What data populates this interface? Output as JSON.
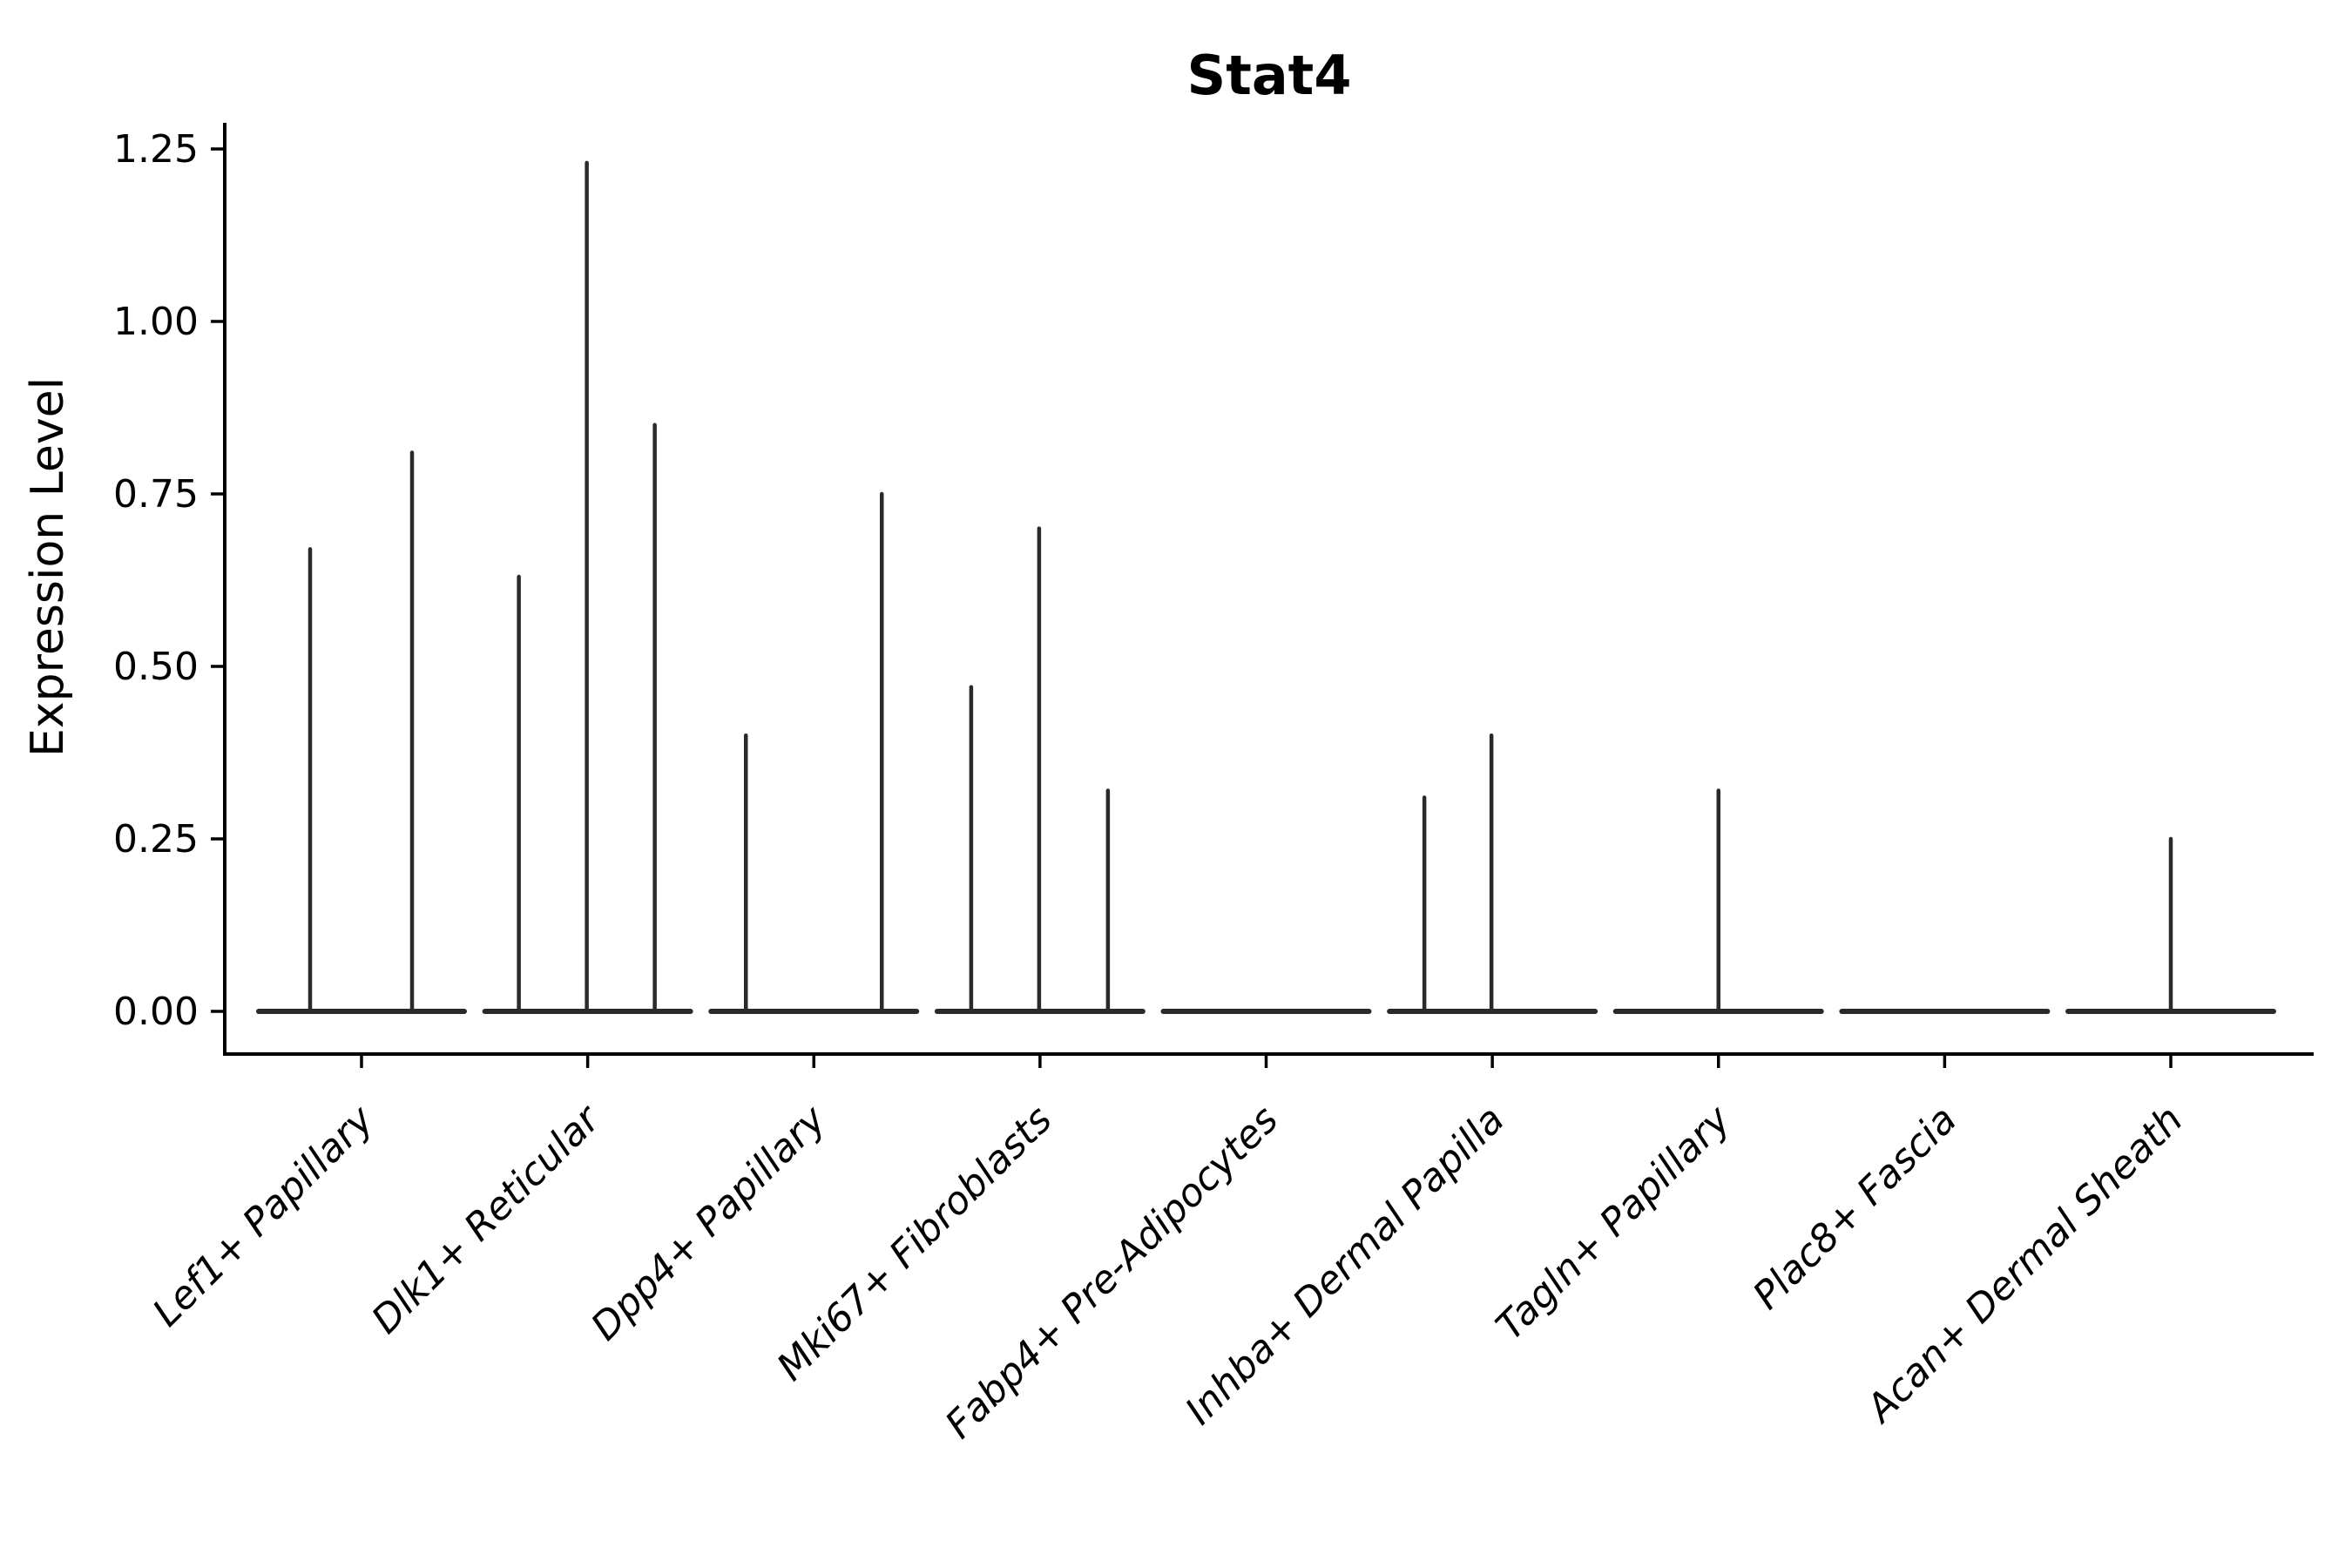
{
  "chart_data": {
    "type": "violin",
    "title": "Stat4",
    "xlabel": "",
    "ylabel": "Expression Level",
    "legend": "none",
    "grid": false,
    "ylim": [
      -0.062,
      1.288
    ],
    "yticks": [
      {
        "label": "0.00",
        "value": 0.0
      },
      {
        "label": "0.25",
        "value": 0.25
      },
      {
        "label": "0.50",
        "value": 0.5
      },
      {
        "label": "0.75",
        "value": 0.75
      },
      {
        "label": "1.00",
        "value": 1.0
      },
      {
        "label": "1.25",
        "value": 1.25
      }
    ],
    "categories": [
      {
        "label": "Lef1+ Papillary",
        "spikes": [
          {
            "dx": -59,
            "max": 0.67
          },
          {
            "dx": 58,
            "max": 0.81
          }
        ]
      },
      {
        "label": "Dlk1+ Reticular",
        "spikes": [
          {
            "dx": -79,
            "max": 0.63
          },
          {
            "dx": -1,
            "max": 1.23
          },
          {
            "dx": 77,
            "max": 0.85
          }
        ]
      },
      {
        "label": "Dpp4+ Papillary",
        "spikes": [
          {
            "dx": -78,
            "max": 0.4
          },
          {
            "dx": 78,
            "max": 0.75
          }
        ]
      },
      {
        "label": "Mki67+ Fibroblasts",
        "spikes": [
          {
            "dx": -79,
            "max": 0.47
          },
          {
            "dx": -1,
            "max": 0.7
          },
          {
            "dx": 78,
            "max": 0.32
          }
        ]
      },
      {
        "label": "Fabp4+ Pre-Adipocytes",
        "spikes": []
      },
      {
        "label": "Inhba+ Dermal Papilla",
        "spikes": [
          {
            "dx": -78,
            "max": 0.31
          },
          {
            "dx": -1,
            "max": 0.4
          }
        ]
      },
      {
        "label": "Tagln+ Papillary",
        "spikes": [
          {
            "dx": 0,
            "max": 0.32
          }
        ]
      },
      {
        "label": "Plac8+ Fascia",
        "spikes": []
      },
      {
        "label": "Acan+ Dermal Sheath",
        "spikes": [
          {
            "dx": 0,
            "max": 0.25
          }
        ]
      }
    ],
    "colors": {
      "violin_line": "#2a2a2a",
      "axis": "#000000",
      "background": "#ffffff"
    }
  }
}
